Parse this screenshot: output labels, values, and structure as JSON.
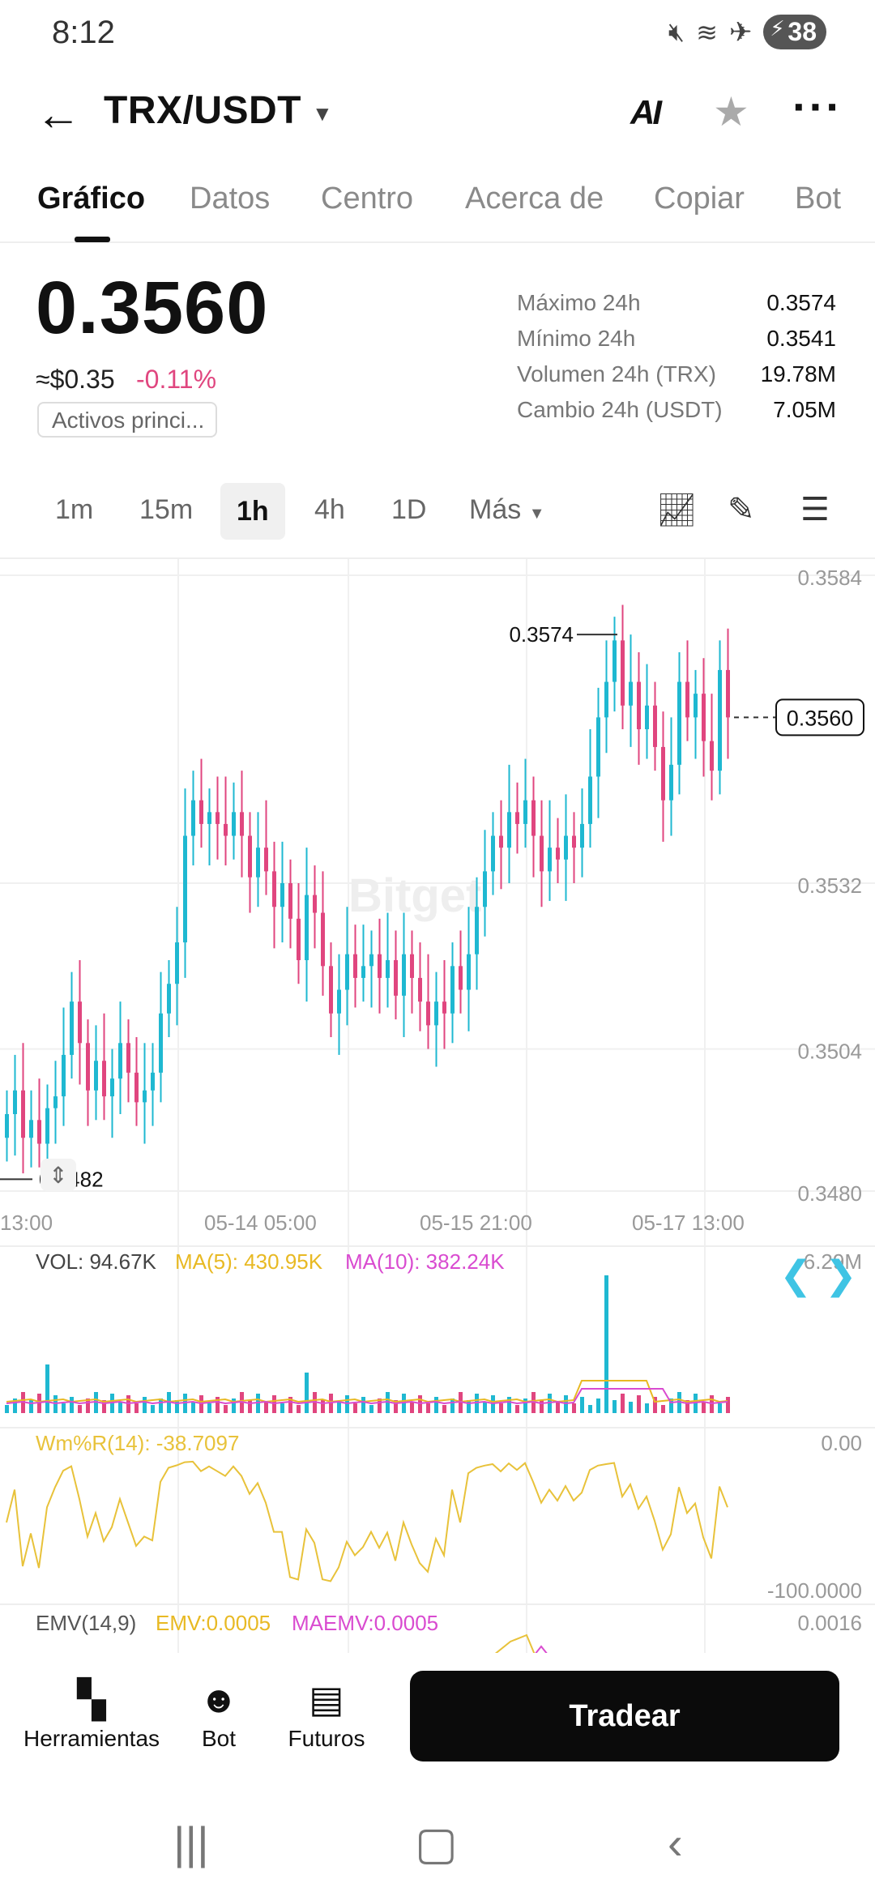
{
  "status": {
    "time": "8:12",
    "battery": "38",
    "icons": [
      "mute-icon",
      "wifi-icon",
      "airplane-icon",
      "battery-icon"
    ]
  },
  "header": {
    "pair": "TRX/USDT",
    "ai_label": "AI",
    "back_icon": "arrow-left-icon",
    "fav_icon": "star-icon",
    "more_icon": "more-icon"
  },
  "tabs": [
    {
      "label": "Gráfico",
      "active": true
    },
    {
      "label": "Datos"
    },
    {
      "label": "Centro"
    },
    {
      "label": "Acerca de"
    },
    {
      "label": "Copiar"
    },
    {
      "label": "Bot"
    }
  ],
  "ticker": {
    "price": "0.3560",
    "approx_usd": "≈$0.35",
    "change": "-0.11%",
    "tag": "Activos princi...",
    "stats": [
      {
        "label": "Máximo 24h",
        "value": "0.3574"
      },
      {
        "label": "Mínimo 24h",
        "value": "0.3541"
      },
      {
        "label": "Volumen 24h (TRX)",
        "value": "19.78M"
      },
      {
        "label": "Cambio 24h (USDT)",
        "value": "7.05M"
      }
    ]
  },
  "timeframes": [
    {
      "label": "1m"
    },
    {
      "label": "15m"
    },
    {
      "label": "1h",
      "active": true
    },
    {
      "label": "4h"
    },
    {
      "label": "1D"
    },
    {
      "label": "Más"
    }
  ],
  "chart_tools": [
    "chart-type-icon",
    "draw-icon",
    "settings-icon"
  ],
  "colors": {
    "up": "#1fb8d1",
    "down": "#e0467f",
    "ma5": "#e8b923",
    "ma10": "#d94bd0",
    "wr": "#e8c23a"
  },
  "chart_data": {
    "type": "candlestick",
    "interval": "1h",
    "y_ticks": [
      "0.3584",
      "0.3532",
      "0.3504",
      "0.3480"
    ],
    "ylim": [
      0.348,
      0.3584
    ],
    "x_ticks": [
      "13:00",
      "05-14 05:00",
      "05-15 21:00",
      "05-17 13:00"
    ],
    "high_label": "0.3574",
    "low_label": "0.3482",
    "last_price": "0.3560",
    "watermark": "Bitget",
    "volume": {
      "label": "VOL: 94.67K",
      "ma5": "MA(5): 430.95K",
      "ma10": "MA(10): 382.24K",
      "max_label": "6.29M"
    },
    "wr": {
      "label": "Wm%R(14): -38.7097",
      "top": "0.00",
      "bottom": "-100.0000"
    },
    "emv": {
      "label": "EMV(14,9)",
      "emv": "EMV:0.0005",
      "maemv": "MAEMV:0.0005",
      "top": "0.0016"
    },
    "closes": [
      0.3493,
      0.3497,
      0.3489,
      0.3492,
      0.3488,
      0.3494,
      0.3496,
      0.3503,
      0.3512,
      0.3505,
      0.3497,
      0.3502,
      0.3496,
      0.3499,
      0.3505,
      0.35,
      0.3495,
      0.3497,
      0.35,
      0.351,
      0.3515,
      0.3522,
      0.354,
      0.3546,
      0.3542,
      0.3544,
      0.3542,
      0.354,
      0.3544,
      0.354,
      0.3533,
      0.3538,
      0.3534,
      0.3528,
      0.3532,
      0.3526,
      0.3519,
      0.353,
      0.3527,
      0.3518,
      0.351,
      0.3514,
      0.352,
      0.3516,
      0.3518,
      0.352,
      0.3516,
      0.3519,
      0.3513,
      0.352,
      0.3516,
      0.3512,
      0.3508,
      0.3512,
      0.351,
      0.3518,
      0.3514,
      0.352,
      0.3528,
      0.3534,
      0.354,
      0.3538,
      0.3544,
      0.3542,
      0.3546,
      0.354,
      0.3534,
      0.3538,
      0.3536,
      0.354,
      0.3538,
      0.3542,
      0.355,
      0.356,
      0.3566,
      0.3573,
      0.3562,
      0.3566,
      0.3558,
      0.3562,
      0.3555,
      0.3546,
      0.3552,
      0.3566,
      0.356,
      0.3564,
      0.3556,
      0.3551,
      0.3568,
      0.356
    ]
  },
  "bottom": {
    "tools": [
      {
        "label": "Herramientas",
        "icon": "tools-icon"
      },
      {
        "label": "Bot",
        "icon": "bot-icon"
      },
      {
        "label": "Futuros",
        "icon": "futures-icon"
      }
    ],
    "trade": "Tradear"
  },
  "nav": [
    "recent-apps-icon",
    "home-icon",
    "back-nav-icon"
  ]
}
